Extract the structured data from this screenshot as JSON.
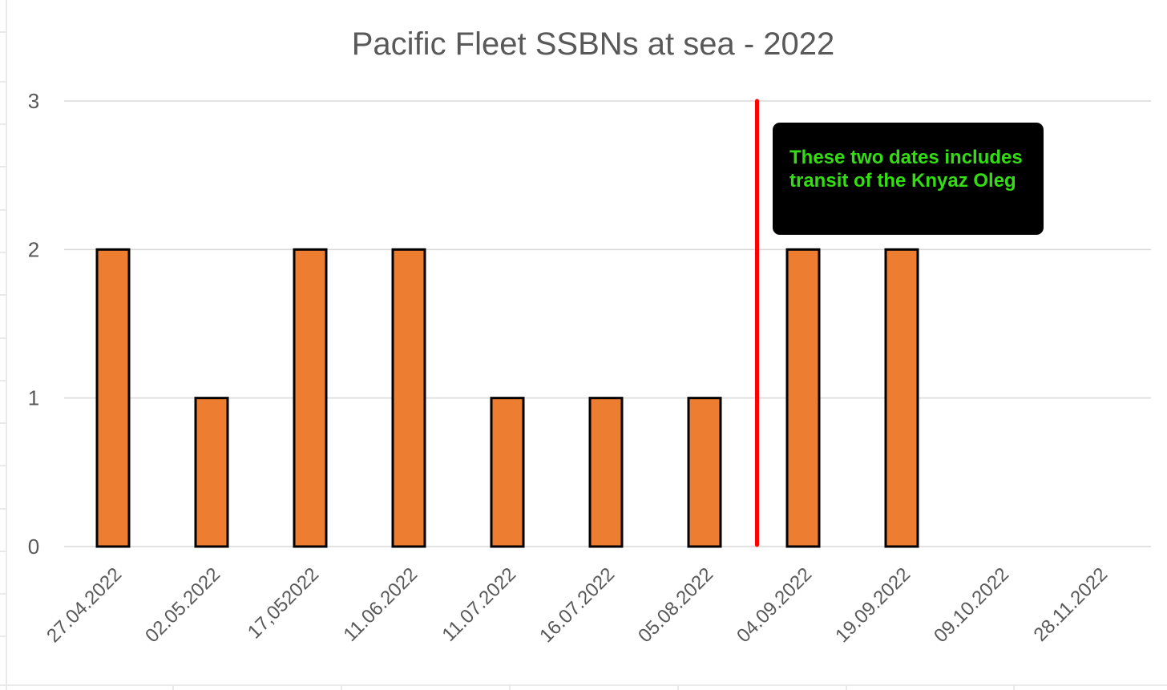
{
  "chart_data": {
    "type": "bar",
    "title": "Pacific Fleet SSBNs at sea - 2022",
    "xlabel": "",
    "ylabel": "",
    "ylim": [
      0,
      3
    ],
    "yticks": [
      "0",
      "1",
      "2",
      "3"
    ],
    "grid": true,
    "legend": "none",
    "categories": [
      "27.04.2022",
      "02.05.2022",
      "17,052022",
      "11.06.2022",
      "11.07.2022",
      "16.07.2022",
      "05.08.2022",
      "04.09.2022",
      "19.09.2022",
      "09.10.2022",
      "28.11.2022"
    ],
    "values": [
      2,
      1,
      2,
      2,
      1,
      1,
      1,
      2,
      2,
      0,
      0
    ],
    "bar_color": "#ED7D31",
    "bar_edge_color": "#000000",
    "marker_line": {
      "color": "#FF0000",
      "between": [
        "05.08.2022",
        "04.09.2022"
      ]
    },
    "annotation": {
      "lines": [
        "These two dates includes",
        "transit of the Knyaz Oleg"
      ],
      "text_color": "#33DD11",
      "box_color": "#000000"
    }
  }
}
